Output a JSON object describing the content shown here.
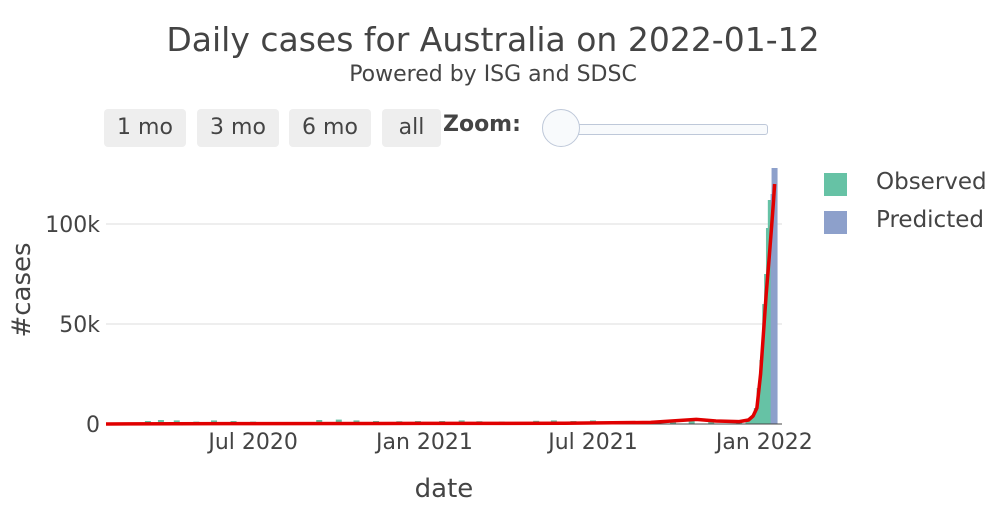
{
  "header": {
    "title": "Daily cases for Australia on 2022-01-12",
    "subtitle": "Powered by ISG and SDSC"
  },
  "range_selector": {
    "buttons": [
      "1 mo",
      "3 mo",
      "6 mo",
      "all"
    ]
  },
  "zoom": {
    "label": "Zoom:"
  },
  "legend": {
    "items": [
      {
        "label": "Observed",
        "color": "#66c2a5"
      },
      {
        "label": "Predicted",
        "color": "#8da0cb"
      }
    ]
  },
  "chart_data": {
    "type": "bar",
    "title": "Daily cases for Australia on 2022-01-12",
    "subtitle": "Powered by ISG and SDSC",
    "xlabel": "date",
    "ylabel": "#cases",
    "xlim": [
      "2020-01-25",
      "2022-01-20"
    ],
    "ylim": [
      0,
      132000
    ],
    "x_tick_labels": [
      {
        "date": "2020-07-01",
        "label": "Jul 2020"
      },
      {
        "date": "2021-01-01",
        "label": "Jan 2021"
      },
      {
        "date": "2021-07-01",
        "label": "Jul 2021"
      },
      {
        "date": "2022-01-01",
        "label": "Jan 2022"
      }
    ],
    "y_tick_labels": [
      {
        "value": 0,
        "label": "0"
      },
      {
        "value": 50000,
        "label": "50k"
      },
      {
        "value": 100000,
        "label": "100k"
      }
    ],
    "grid": true,
    "legend_position": "top-right",
    "series": [
      {
        "name": "Observed",
        "kind": "bar",
        "color": "#66c2a5",
        "points": [
          [
            "2020-03-10",
            1500
          ],
          [
            "2020-03-24",
            2000
          ],
          [
            "2020-04-10",
            1800
          ],
          [
            "2020-05-01",
            1200
          ],
          [
            "2020-05-20",
            1800
          ],
          [
            "2020-06-10",
            1500
          ],
          [
            "2020-07-01",
            1200
          ],
          [
            "2020-07-20",
            1000
          ],
          [
            "2020-08-10",
            1000
          ],
          [
            "2020-09-10",
            2000
          ],
          [
            "2020-10-01",
            2200
          ],
          [
            "2020-10-20",
            1800
          ],
          [
            "2020-11-10",
            1500
          ],
          [
            "2020-12-05",
            1400
          ],
          [
            "2020-12-25",
            1500
          ],
          [
            "2021-01-20",
            1500
          ],
          [
            "2021-02-10",
            1800
          ],
          [
            "2021-03-01",
            1400
          ],
          [
            "2021-03-25",
            1200
          ],
          [
            "2021-05-01",
            1600
          ],
          [
            "2021-05-20",
            1800
          ],
          [
            "2021-06-10",
            1500
          ],
          [
            "2021-07-01",
            1800
          ],
          [
            "2021-07-25",
            1500
          ],
          [
            "2021-08-15",
            1400
          ],
          [
            "2021-09-05",
            1200
          ],
          [
            "2021-09-25",
            1500
          ],
          [
            "2021-10-15",
            1800
          ],
          [
            "2021-11-05",
            1500
          ],
          [
            "2021-12-05",
            1500
          ],
          [
            "2021-12-15",
            2000
          ],
          [
            "2021-12-20",
            3500
          ],
          [
            "2021-12-24",
            8000
          ],
          [
            "2021-12-27",
            18000
          ],
          [
            "2021-12-30",
            32000
          ],
          [
            "2022-01-02",
            60000
          ],
          [
            "2022-01-04",
            75000
          ],
          [
            "2022-01-06",
            98000
          ],
          [
            "2022-01-08",
            112000
          ],
          [
            "2022-01-10",
            95000
          ]
        ]
      },
      {
        "name": "Predicted",
        "kind": "bar",
        "color": "#8da0cb",
        "points": [
          [
            "2022-01-11",
            115000
          ],
          [
            "2022-01-12",
            128000
          ]
        ]
      },
      {
        "name": "",
        "kind": "line",
        "color": "#e00000",
        "points": [
          [
            "2020-01-25",
            0
          ],
          [
            "2020-06-01",
            200
          ],
          [
            "2021-01-01",
            300
          ],
          [
            "2021-06-01",
            350
          ],
          [
            "2021-09-01",
            800
          ],
          [
            "2021-10-20",
            2300
          ],
          [
            "2021-11-10",
            1500
          ],
          [
            "2021-12-05",
            1200
          ],
          [
            "2021-12-15",
            2000
          ],
          [
            "2021-12-20",
            4000
          ],
          [
            "2021-12-24",
            8000
          ],
          [
            "2021-12-28",
            25000
          ],
          [
            "2021-12-31",
            45000
          ],
          [
            "2022-01-03",
            65000
          ],
          [
            "2022-01-06",
            82000
          ],
          [
            "2022-01-09",
            100000
          ],
          [
            "2022-01-11",
            112000
          ],
          [
            "2022-01-12",
            120000
          ]
        ]
      }
    ]
  }
}
